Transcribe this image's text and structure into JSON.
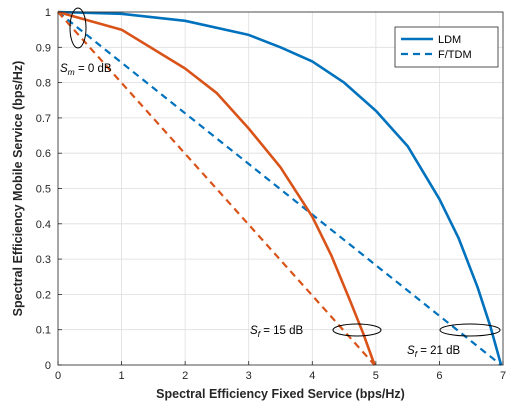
{
  "chart_data": {
    "type": "line",
    "xlabel": "Spectral Efficiency Fixed Service (bps/Hz)",
    "ylabel": "Spectral Efficiency Mobile Service (bps/Hz)",
    "xlim": [
      0,
      7
    ],
    "ylim": [
      0,
      1
    ],
    "xticks": [
      "0",
      "1",
      "2",
      "3",
      "4",
      "5",
      "6",
      "7"
    ],
    "yticks": [
      "0",
      "0.1",
      "0.2",
      "0.3",
      "0.4",
      "0.5",
      "0.6",
      "0.7",
      "0.8",
      "0.9",
      "1"
    ],
    "grid": true,
    "legend_position": "top-right",
    "colors": {
      "blue": "#0072BD",
      "orange": "#D95319"
    },
    "series": [
      {
        "name": "LDM",
        "style": "solid",
        "color": "#0072BD",
        "x": [
          0,
          1,
          2,
          3,
          3.5,
          4,
          4.5,
          5,
          5.5,
          6,
          6.3,
          6.6,
          6.8,
          6.97
        ],
        "y": [
          1,
          0.995,
          0.975,
          0.935,
          0.9,
          0.86,
          0.8,
          0.72,
          0.62,
          0.47,
          0.36,
          0.22,
          0.11,
          0
        ]
      },
      {
        "name": "F/TDM",
        "style": "dashed",
        "color": "#0072BD",
        "x": [
          0,
          6.97
        ],
        "y": [
          1,
          0
        ]
      },
      {
        "name": "",
        "style": "solid",
        "color": "#D95319",
        "x": [
          0,
          1,
          2,
          2.5,
          3,
          3.5,
          4,
          4.3,
          4.6,
          4.8,
          4.98
        ],
        "y": [
          1,
          0.95,
          0.84,
          0.77,
          0.67,
          0.56,
          0.42,
          0.31,
          0.18,
          0.09,
          0
        ]
      },
      {
        "name": "",
        "style": "dashed",
        "color": "#D95319",
        "x": [
          0,
          4.98
        ],
        "y": [
          1,
          0
        ]
      }
    ],
    "annotations": [
      {
        "label": "S",
        "sub": "m",
        "rest": " = 0 dB"
      },
      {
        "label": "S",
        "sub": "f",
        "rest": " = 15 dB"
      },
      {
        "label": "S",
        "sub": "f",
        "rest": " = 21 dB"
      }
    ]
  }
}
